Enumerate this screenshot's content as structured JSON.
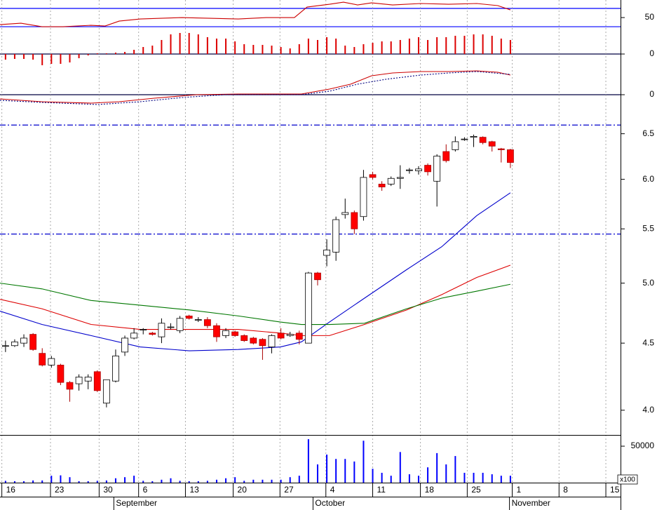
{
  "chart_data": [
    {
      "type": "line",
      "xlim": [
        -0.6,
        67
      ],
      "ylim": [
        27,
        88.5
      ],
      "yticks": [
        50
      ],
      "ref_lines": [
        70,
        30
      ],
      "ref_color": "#0000ff",
      "ref_style": "solid",
      "series": [
        {
          "color": "#cc0000",
          "dashed": false,
          "x": [
            -0.6,
            1.68,
            3.97,
            6.26,
            9.32,
            10.85,
            12.38,
            14.67,
            19.25,
            22.31,
            25.36,
            28.42,
            31.47,
            32.85,
            35.29,
            36.82,
            38.35,
            39.88,
            42.17,
            45.23,
            48.28,
            51.34,
            53.63,
            55
          ],
          "values": [
            34.6,
            37.7,
            30,
            30,
            33.1,
            31.5,
            42.3,
            46.9,
            50,
            48.5,
            46.9,
            50,
            50,
            73.1,
            79.2,
            83.8,
            77.7,
            82.3,
            77.7,
            80.8,
            79.2,
            80.8,
            76.2,
            66.9
          ]
        }
      ]
    },
    {
      "type": "bar",
      "xlim": [
        -0.6,
        67
      ],
      "ylim": [
        -21,
        37
      ],
      "yticks": [
        0
      ],
      "grid": true,
      "color": "#dd0000",
      "x": [
        0,
        1,
        2,
        3,
        4,
        5,
        6,
        7,
        8,
        9,
        10,
        11,
        12,
        13,
        14,
        15,
        16,
        17,
        18,
        19,
        20,
        21,
        22,
        23,
        24,
        25,
        26,
        27,
        28,
        29,
        30,
        31,
        32,
        33,
        34,
        35,
        36,
        37,
        38,
        39,
        40,
        41,
        42,
        43,
        44,
        45,
        46,
        47,
        48,
        49,
        50,
        51,
        52,
        53,
        54,
        55
      ],
      "values": [
        -8,
        -7,
        -7,
        -8,
        -16,
        -14,
        -14,
        -12,
        -6,
        -2,
        1,
        1,
        2,
        3,
        6,
        10,
        12,
        20,
        28,
        30,
        30,
        28,
        24,
        22,
        22,
        18,
        14,
        13,
        13,
        12,
        10,
        8,
        14,
        22,
        20,
        24,
        22,
        12,
        10,
        14,
        16,
        18,
        18,
        20,
        22,
        24,
        20,
        24,
        24,
        26,
        26,
        28,
        28,
        26,
        22,
        20
      ]
    },
    {
      "type": "line",
      "xlim": [
        -0.6,
        67
      ],
      "ylim": [
        -0.25,
        0.37
      ],
      "yticks": [
        0
      ],
      "grid": true,
      "series": [
        {
          "color": "#cc0000",
          "dashed": false,
          "x": [
            -0.6,
            3.97,
            9.32,
            12.38,
            16.2,
            20.78,
            25.36,
            32.24,
            35.29,
            37.59,
            39.88,
            42.17,
            45.23,
            48.28,
            51.34,
            53.63,
            55
          ],
          "values": [
            -0.06,
            -0.1,
            -0.12,
            -0.1,
            -0.05,
            0,
            0.01,
            0.01,
            0.08,
            0.15,
            0.27,
            0.31,
            0.33,
            0.33,
            0.34,
            0.32,
            0.28
          ]
        },
        {
          "color": "#000080",
          "dashed": true,
          "x": [
            -0.6,
            3.97,
            10.08,
            14.67,
            19.25,
            23.84,
            32.24,
            35.29,
            38.35,
            41.44,
            45.23,
            48.28,
            51.34,
            55
          ],
          "values": [
            -0.08,
            -0.11,
            -0.14,
            -0.1,
            -0.04,
            0,
            0,
            0.05,
            0.15,
            0.22,
            0.28,
            0.31,
            0.33,
            0.29
          ]
        }
      ]
    },
    {
      "type": "candlestick",
      "xlim": [
        -0.6,
        67
      ],
      "ylim": [
        3.83,
        6.75
      ],
      "log_scale": true,
      "yticks": [
        {
          "value": 4.0,
          "label": "4.0"
        },
        {
          "value": 4.5,
          "label": "4.5"
        },
        {
          "value": 5.0,
          "label": "5.0"
        },
        {
          "value": 5.5,
          "label": "5.5"
        },
        {
          "value": 6.0,
          "label": "6.0"
        },
        {
          "value": 6.5,
          "label": "6.5"
        }
      ],
      "ref_lines": [
        6.6,
        5.45
      ],
      "ref_color": "#0000cc",
      "ref_style": "dash-dot",
      "up_color": "#ffffff",
      "down_color": "#ff0000",
      "x": [
        0,
        1,
        2,
        3,
        4,
        5,
        6,
        7,
        8,
        9,
        10,
        11,
        12,
        13,
        14,
        15,
        16,
        17,
        18,
        19,
        20,
        21,
        22,
        23,
        24,
        25,
        26,
        27,
        28,
        29,
        30,
        31,
        32,
        33,
        34,
        35,
        36,
        37,
        38,
        39,
        40,
        41,
        42,
        43,
        44,
        45,
        46,
        47,
        48,
        49,
        50,
        51,
        52,
        53,
        54,
        55
      ],
      "open": [
        4.48,
        4.48,
        4.5,
        4.57,
        4.42,
        4.33,
        4.33,
        4.2,
        4.19,
        4.21,
        4.28,
        4.05,
        4.21,
        4.43,
        4.54,
        4.61,
        4.58,
        4.55,
        4.63,
        4.6,
        4.72,
        4.69,
        4.69,
        4.64,
        4.56,
        4.59,
        4.56,
        4.54,
        4.53,
        4.47,
        4.58,
        4.56,
        4.58,
        4.5,
        5.09,
        5.25,
        5.28,
        5.64,
        5.66,
        5.62,
        6.05,
        5.95,
        5.95,
        6.01,
        6.1,
        6.09,
        6.15,
        5.98,
        6.3,
        6.32,
        6.44,
        6.46,
        6.46,
        6.41,
        6.33,
        6.32
      ],
      "high": [
        4.52,
        4.53,
        4.57,
        4.58,
        4.46,
        4.4,
        4.34,
        4.21,
        4.26,
        4.26,
        4.29,
        4.22,
        4.45,
        4.56,
        4.62,
        4.62,
        4.59,
        4.7,
        4.66,
        4.72,
        4.73,
        4.71,
        4.71,
        4.66,
        4.62,
        4.6,
        4.57,
        4.55,
        4.54,
        4.57,
        4.62,
        4.59,
        4.6,
        5.1,
        5.1,
        5.4,
        5.62,
        5.8,
        5.68,
        6.1,
        6.08,
        5.98,
        6.03,
        6.15,
        6.12,
        6.14,
        6.17,
        6.27,
        6.38,
        6.47,
        6.46,
        6.49,
        6.47,
        6.42,
        6.34,
        6.33
      ],
      "low": [
        4.43,
        4.47,
        4.47,
        4.44,
        4.32,
        4.31,
        4.18,
        4.06,
        4.14,
        4.15,
        4.13,
        4.02,
        4.2,
        4.4,
        4.53,
        4.57,
        4.56,
        4.5,
        4.61,
        4.58,
        4.69,
        4.67,
        4.62,
        4.51,
        4.54,
        4.55,
        4.51,
        4.49,
        4.37,
        4.42,
        4.53,
        4.55,
        4.49,
        4.5,
        4.98,
        5.15,
        5.2,
        5.6,
        5.45,
        5.58,
        6.0,
        5.88,
        5.93,
        5.9,
        6.06,
        6.05,
        6.04,
        5.72,
        6.18,
        6.3,
        6.42,
        6.35,
        6.38,
        6.3,
        6.18,
        6.12
      ],
      "close": [
        4.48,
        4.51,
        4.54,
        4.45,
        4.33,
        4.38,
        4.2,
        4.15,
        4.24,
        4.24,
        4.14,
        4.22,
        4.4,
        4.54,
        4.58,
        4.61,
        4.57,
        4.66,
        4.63,
        4.7,
        4.7,
        4.69,
        4.64,
        4.55,
        4.6,
        4.56,
        4.52,
        4.5,
        4.48,
        4.56,
        4.54,
        4.57,
        4.53,
        5.09,
        5.03,
        5.3,
        5.59,
        5.66,
        5.5,
        6.02,
        6.02,
        5.92,
        6.01,
        6.02,
        6.1,
        6.11,
        6.08,
        6.25,
        6.2,
        6.41,
        6.44,
        6.47,
        6.4,
        6.36,
        6.32,
        6.18
      ],
      "series": [
        {
          "color": "#0000cc",
          "x": [
            -0.6,
            3.97,
            9.32,
            14.67,
            20.02,
            25.36,
            29.95,
            32.24,
            35.29,
            39.11,
            43.7,
            47.52,
            51.34,
            55
          ],
          "values": [
            4.76,
            4.65,
            4.56,
            4.47,
            4.44,
            4.45,
            4.47,
            4.51,
            4.67,
            4.87,
            5.12,
            5.33,
            5.63,
            5.86
          ]
        },
        {
          "color": "#dd0000",
          "x": [
            -0.6,
            3.97,
            9.32,
            14.67,
            20.02,
            25.36,
            29.95,
            32.24,
            35.29,
            39.11,
            43.7,
            47.52,
            51.34,
            55
          ],
          "values": [
            4.86,
            4.78,
            4.65,
            4.61,
            4.61,
            4.61,
            4.58,
            4.56,
            4.56,
            4.65,
            4.77,
            4.9,
            5.05,
            5.16
          ]
        },
        {
          "color": "#007700",
          "x": [
            -0.6,
            3.97,
            9.32,
            14.67,
            20.02,
            25.36,
            29.95,
            32.24,
            35.29,
            39.11,
            43.7,
            47.52,
            51.34,
            55
          ],
          "values": [
            5.0,
            4.95,
            4.85,
            4.81,
            4.77,
            4.72,
            4.67,
            4.65,
            4.65,
            4.66,
            4.78,
            4.87,
            4.93,
            4.99
          ]
        }
      ]
    },
    {
      "type": "bar",
      "xlim": [
        -0.6,
        67
      ],
      "ylim": [
        0,
        63500
      ],
      "yticks": [
        50000
      ],
      "color": "#0000ff",
      "unit_label": "x100",
      "x": [
        0,
        1,
        2,
        3,
        4,
        5,
        6,
        7,
        8,
        9,
        10,
        11,
        12,
        13,
        14,
        15,
        16,
        17,
        18,
        19,
        20,
        21,
        22,
        23,
        24,
        25,
        26,
        27,
        28,
        29,
        30,
        31,
        32,
        33,
        34,
        35,
        36,
        37,
        38,
        39,
        40,
        41,
        42,
        43,
        44,
        45,
        46,
        47,
        48,
        49,
        50,
        51,
        52,
        53,
        54,
        55
      ],
      "values": [
        2500,
        2000,
        2000,
        3000,
        3000,
        9500,
        10000,
        7500,
        2000,
        2000,
        2500,
        3000,
        6000,
        7500,
        9500,
        2500,
        2000,
        4000,
        6000,
        2500,
        2000,
        2000,
        2500,
        4000,
        6000,
        7500,
        2500,
        4000,
        4000,
        4000,
        4000,
        7500,
        9500,
        59600,
        25000,
        38500,
        32500,
        32500,
        29000,
        57500,
        19000,
        13500,
        9500,
        42000,
        11500,
        9500,
        21000,
        40500,
        25000,
        36500,
        13500,
        13500,
        13500,
        11500,
        9500,
        9500
      ],
      "xticks": [
        {
          "value": -0.4,
          "label": "16"
        },
        {
          "value": 4.9,
          "label": "23"
        },
        {
          "value": 10.2,
          "label": "30"
        },
        {
          "value": 14.5,
          "label": "6"
        },
        {
          "value": 19.6,
          "label": "13"
        },
        {
          "value": 24.8,
          "label": "20"
        },
        {
          "value": 29.9,
          "label": "27"
        },
        {
          "value": 34.9,
          "label": "4"
        },
        {
          "value": 40,
          "label": "11"
        },
        {
          "value": 45.2,
          "label": "18"
        },
        {
          "value": 50.3,
          "label": "25"
        },
        {
          "value": 55.2,
          "label": "1"
        },
        {
          "value": 60.3,
          "label": "8"
        },
        {
          "value": 65.4,
          "label": "15"
        }
      ],
      "month_ticks": [
        {
          "value": 11.8,
          "label": "September"
        },
        {
          "value": 33.5,
          "label": "October"
        },
        {
          "value": 54.9,
          "label": "November"
        }
      ]
    }
  ]
}
